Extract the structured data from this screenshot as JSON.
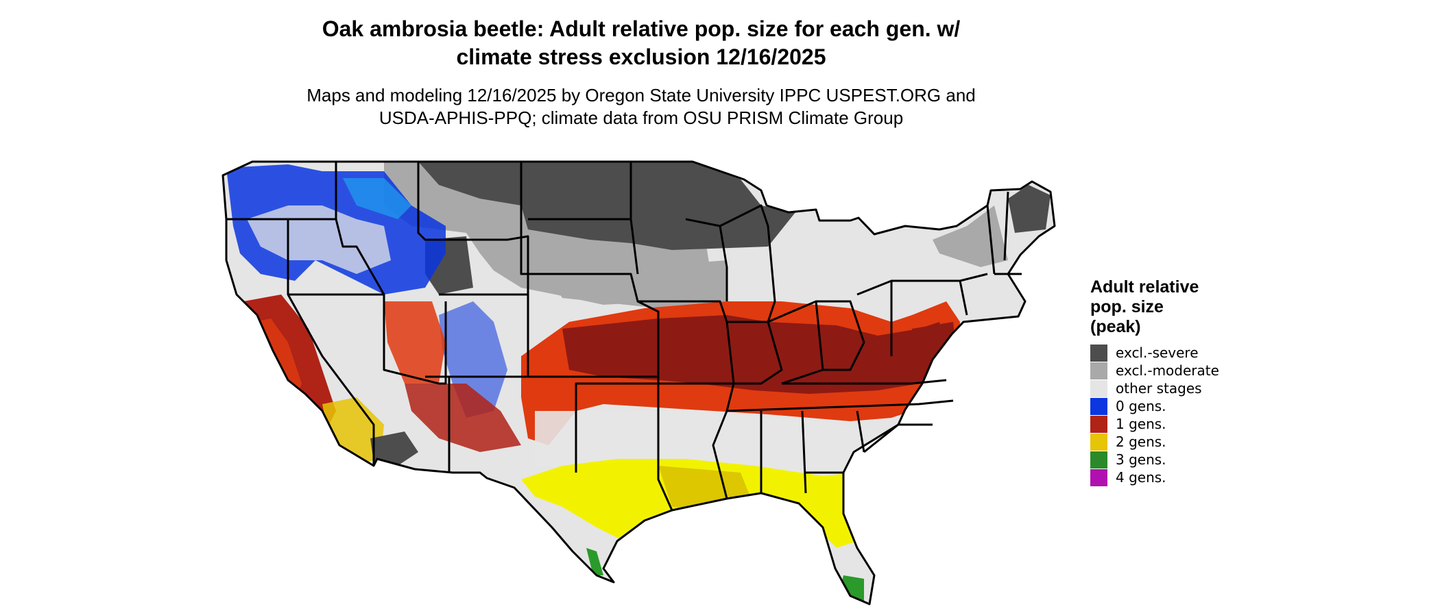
{
  "title_line1": "Oak ambrosia beetle: Adult relative pop. size for each gen. w/",
  "title_line2": "climate stress exclusion 12/16/2025",
  "subtitle_line1": "Maps and modeling 12/16/2025 by Oregon State University IPPC USPEST.ORG and",
  "subtitle_line2": "USDA-APHIS-PPQ; climate data from OSU PRISM Climate Group",
  "legend": {
    "title_line1": "Adult relative",
    "title_line2": "pop. size",
    "title_line3": "(peak)",
    "items": [
      {
        "label": "excl.-severe",
        "color": "#4d4d4d"
      },
      {
        "label": "excl.-moderate",
        "color": "#a9a9a9"
      },
      {
        "label": "other stages",
        "color": "#e5e5e5"
      },
      {
        "label": "0 gens.",
        "color": "#0b36e0"
      },
      {
        "label": "1 gens.",
        "color": "#b02317"
      },
      {
        "label": "2 gens.",
        "color": "#e6c406"
      },
      {
        "label": "3 gens.",
        "color": "#2a8a2a"
      },
      {
        "label": "4 gens.",
        "color": "#b010b0"
      }
    ]
  },
  "map_colors": {
    "severe": "#4d4d4d",
    "moderate": "#a9a9a9",
    "other": "#e5e5e5",
    "blue": "#0b36e0",
    "lightblue": "#20a0f0",
    "red": "#e03a10",
    "darkred": "#8e1a14",
    "yellow": "#f2f200",
    "gold": "#d8c000",
    "green": "#2a9a2a"
  }
}
